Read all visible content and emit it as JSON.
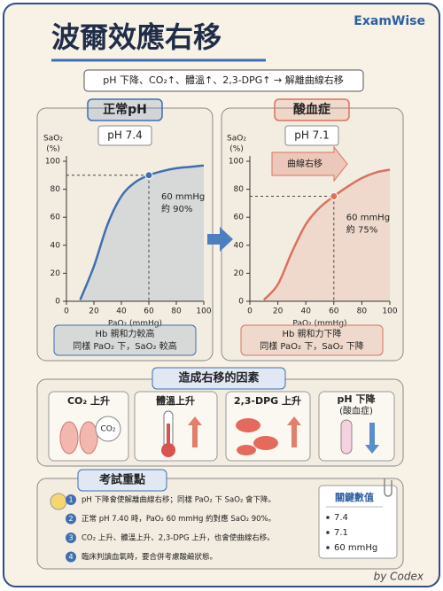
{
  "header": {
    "title": "波爾效應右移",
    "brand": "ExamWise"
  },
  "summary": "pH 下降、CO₂↑、體溫↑、2,3-DPG↑ → 解離曲線右移",
  "chart_data": [
    {
      "type": "line",
      "title": "正常pH",
      "subtitle": "pH 7.4",
      "y_label": "SaO₂",
      "y_unit": "(%)",
      "x_label": "PaO₂ (mmHg)",
      "xlim": [
        0,
        100
      ],
      "ylim": [
        0,
        100
      ],
      "xticks": [
        0,
        20,
        40,
        60,
        80,
        100
      ],
      "yticks": [
        0,
        20,
        40,
        60,
        80,
        100
      ],
      "series": [
        {
          "color": "#3f6fb0",
          "x": [
            10,
            20,
            30,
            40,
            50,
            60,
            70,
            80,
            90,
            100
          ],
          "values": [
            1,
            25,
            55,
            75,
            85,
            90,
            93,
            95,
            96,
            97
          ]
        }
      ],
      "marker": {
        "x": 60,
        "y": 90
      },
      "annotations": [
        "60 mmHg",
        "約 90%"
      ],
      "notes": [
        "Hb 親和力較高",
        "同樣 PaO₂ 下，SaO₂ 較高"
      ]
    },
    {
      "type": "line",
      "title": "酸血症",
      "subtitle": "pH 7.1",
      "y_label": "SaO₂",
      "y_unit": "(%)",
      "x_label": "PaO₂ (mmHg)",
      "xlim": [
        0,
        100
      ],
      "ylim": [
        0,
        100
      ],
      "xticks": [
        0,
        20,
        40,
        60,
        80,
        100
      ],
      "yticks": [
        0,
        20,
        40,
        60,
        80,
        100
      ],
      "series": [
        {
          "color": "#d9735f",
          "x": [
            10,
            20,
            30,
            40,
            50,
            60,
            70,
            80,
            90,
            100
          ],
          "values": [
            1,
            12,
            35,
            55,
            67,
            75,
            82,
            88,
            92,
            94
          ]
        }
      ],
      "marker": {
        "x": 60,
        "y": 75
      },
      "annotations": [
        "60 mmHg",
        "約 75%"
      ],
      "arrow_label": "曲線右移",
      "notes": [
        "Hb 親和力下降",
        "同樣 PaO₂ 下，SaO₂ 下降"
      ]
    }
  ],
  "factors": {
    "title": "造成右移的因素",
    "items": [
      {
        "label": "CO₂ 上升",
        "icon_text": "CO₂"
      },
      {
        "label": "體溫上升"
      },
      {
        "label": "2,3-DPG 上升"
      },
      {
        "label": "pH 下降",
        "sublabel": "(酸血症)"
      }
    ]
  },
  "exam": {
    "title": "考試重點",
    "items": [
      {
        "number": 1,
        "text": "pH 下降會使解離曲線右移；同樣 PaO₂ 下 SaO₂ 會下降。"
      },
      {
        "number": 2,
        "text": "正常 pH 7.40 時，PaO₂ 60 mmHg 約對應 SaO₂ 90%。"
      },
      {
        "number": 3,
        "text": "CO₂ 上升、體溫上升、2,3-DPG 上升，也會使曲線右移。"
      },
      {
        "number": 4,
        "text": "臨床判讀血氧時，要合併考慮酸鹼狀態。"
      }
    ]
  },
  "key_values": {
    "title": "關鍵數值",
    "items": [
      "7.4",
      "7.1",
      "60 mmHg"
    ]
  },
  "signature": "by Codex"
}
